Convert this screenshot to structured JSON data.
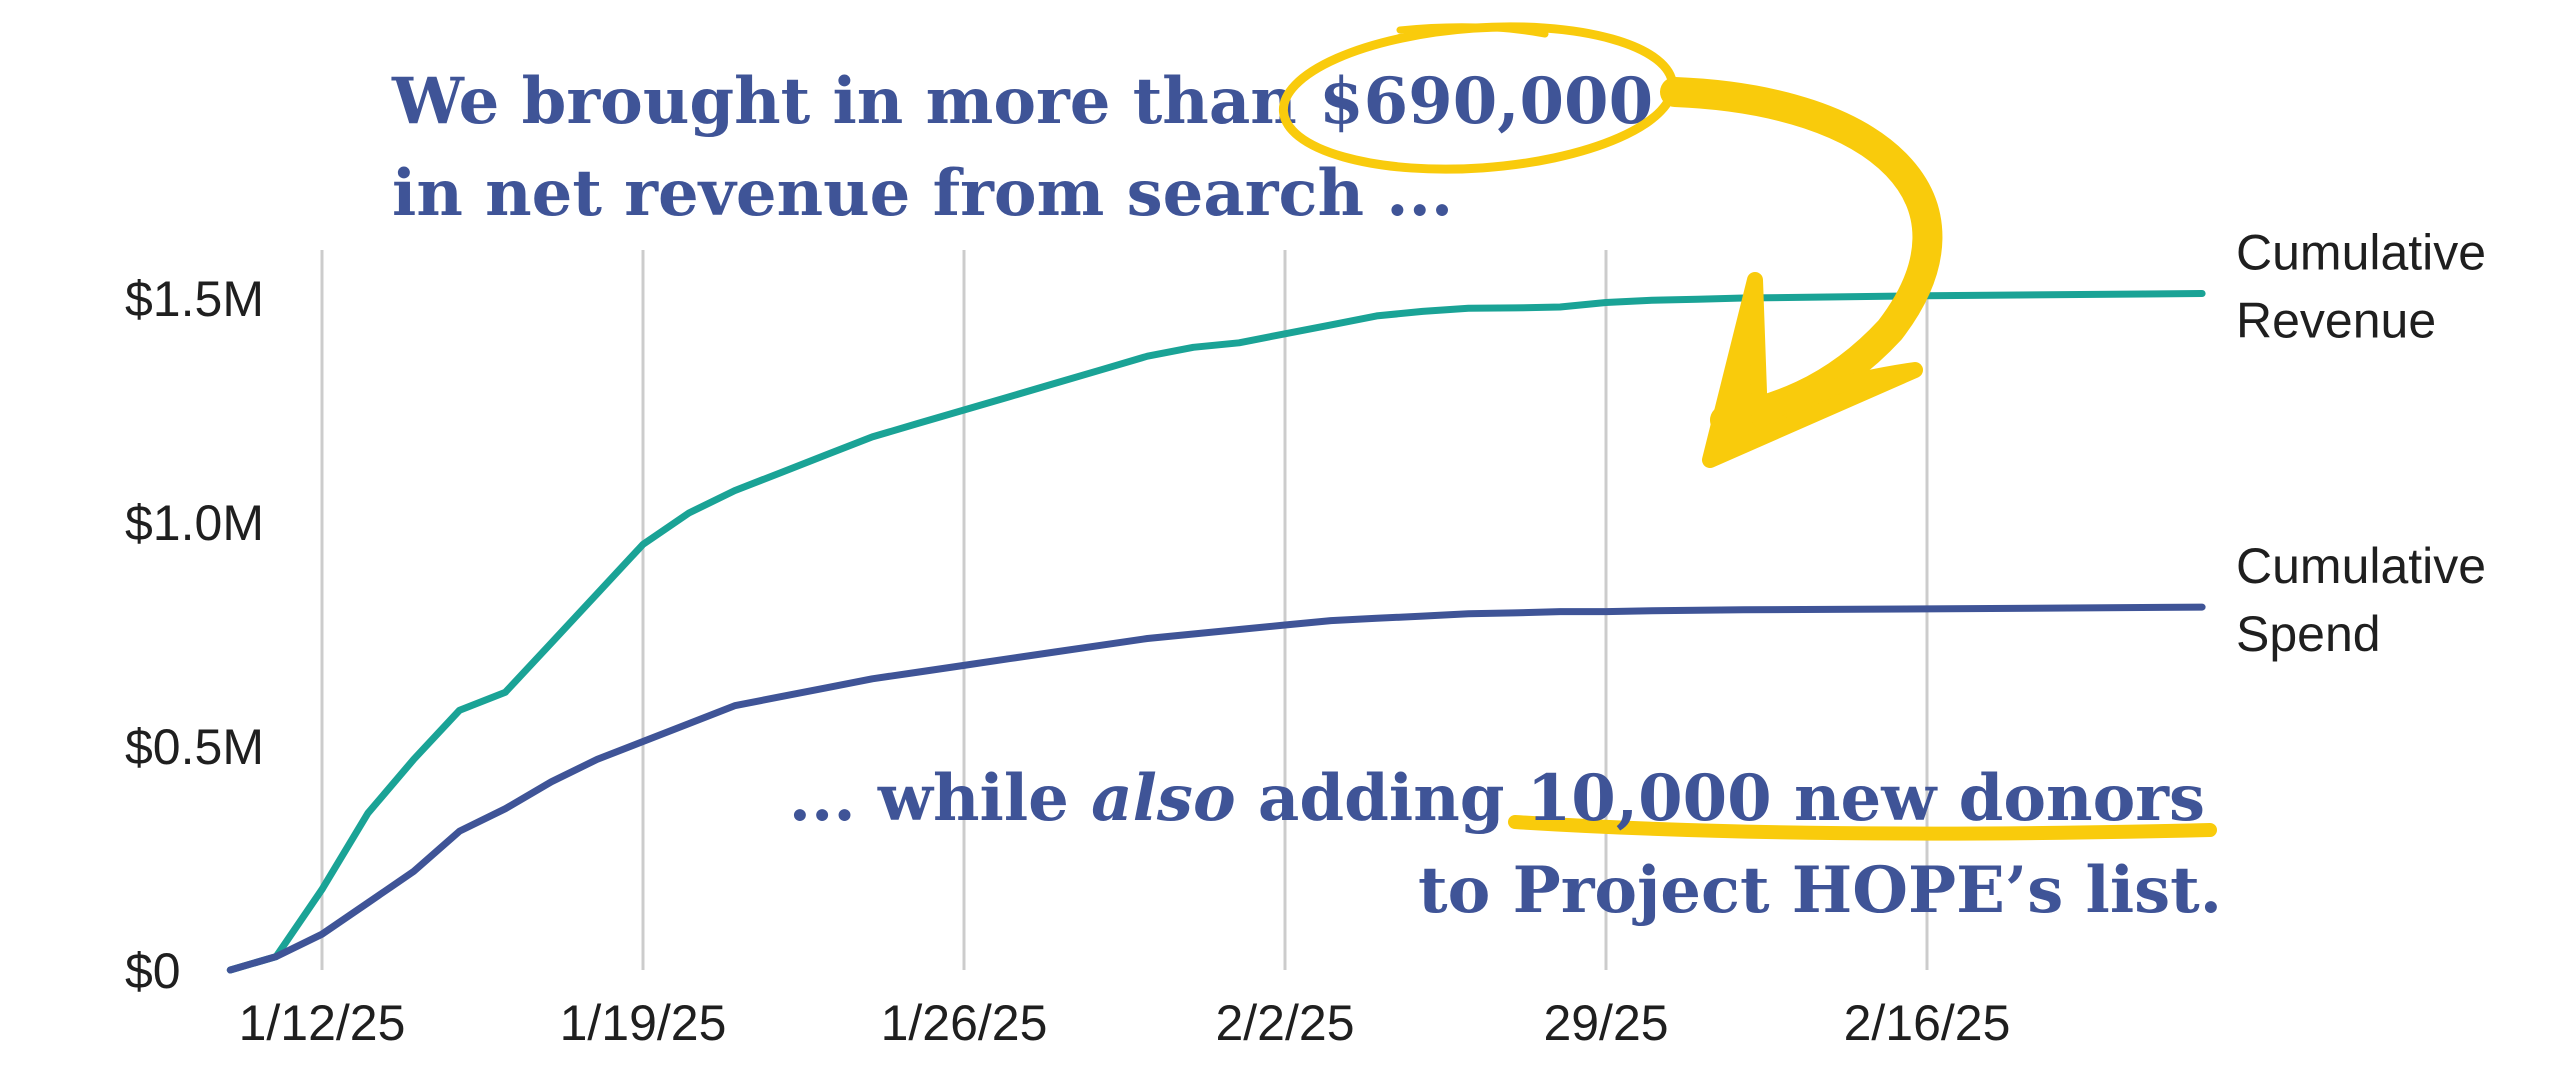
{
  "annotations": {
    "headline_line1_prefix": "We brought in more than ",
    "headline_line1_highlight": "$690,000",
    "headline_line2": "in net revenue from search ...",
    "sub_line1_prefix": "... while ",
    "sub_line1_italic": "also",
    "sub_line1_mid": " adding ",
    "sub_line1_highlight": "10,000 new donors",
    "sub_line2": "to Project HOPE’s list."
  },
  "colors": {
    "revenue": "#1aa396",
    "spend": "#3f5497",
    "highlight": "#f9cb0c",
    "grid": "#cccccc",
    "text_accent": "#3f5497"
  },
  "chart_data": {
    "type": "line",
    "title": "",
    "xlabel": "",
    "ylabel": "",
    "x_ticks": [
      "1/12/25",
      "1/19/25",
      "1/26/25",
      "2/2/25",
      "29/25",
      "2/16/25"
    ],
    "y_ticks": [
      "$0",
      "$0.5M",
      "$1.0M",
      "$1.5M"
    ],
    "y_tick_values": [
      0,
      0.5,
      1.0,
      1.5
    ],
    "ylim": [
      0,
      1.5
    ],
    "grid": "vertical",
    "legend": "right end labels",
    "x": [
      "1/10/25",
      "1/11/25",
      "1/12/25",
      "1/13/25",
      "1/14/25",
      "1/15/25",
      "1/16/25",
      "1/17/25",
      "1/18/25",
      "1/19/25",
      "1/20/25",
      "1/21/25",
      "1/22/25",
      "1/23/25",
      "1/24/25",
      "1/25/25",
      "1/26/25",
      "1/27/25",
      "1/28/25",
      "1/29/25",
      "1/30/25",
      "1/31/25",
      "2/1/25",
      "2/2/25",
      "2/3/25",
      "2/4/25",
      "2/5/25",
      "2/6/25",
      "2/7/25",
      "2/8/25",
      "2/9/25",
      "2/10/25",
      "2/11/25",
      "2/12/25",
      "2/16/25",
      "2/22/25"
    ],
    "series": [
      {
        "name": "Cumulative Revenue",
        "values": [
          0.0,
          0.03,
          0.18,
          0.35,
          0.47,
          0.58,
          0.62,
          0.73,
          0.84,
          0.95,
          1.02,
          1.07,
          1.11,
          1.15,
          1.19,
          1.22,
          1.25,
          1.28,
          1.31,
          1.34,
          1.37,
          1.39,
          1.4,
          1.42,
          1.44,
          1.46,
          1.47,
          1.477,
          1.478,
          1.48,
          1.49,
          1.495,
          1.497,
          1.5,
          1.505,
          1.51
        ]
      },
      {
        "name": "Cumulative Spend",
        "values": [
          0.0,
          0.03,
          0.08,
          0.15,
          0.22,
          0.31,
          0.36,
          0.42,
          0.47,
          0.51,
          0.55,
          0.59,
          0.61,
          0.63,
          0.65,
          0.665,
          0.68,
          0.695,
          0.71,
          0.725,
          0.74,
          0.75,
          0.76,
          0.77,
          0.78,
          0.785,
          0.79,
          0.795,
          0.797,
          0.8,
          0.8,
          0.802,
          0.803,
          0.804,
          0.806,
          0.81
        ]
      }
    ],
    "series_labels": [
      {
        "lines": [
          "Cumulative",
          "Revenue"
        ]
      },
      {
        "lines": [
          "Cumulative",
          "Spend"
        ]
      }
    ]
  }
}
